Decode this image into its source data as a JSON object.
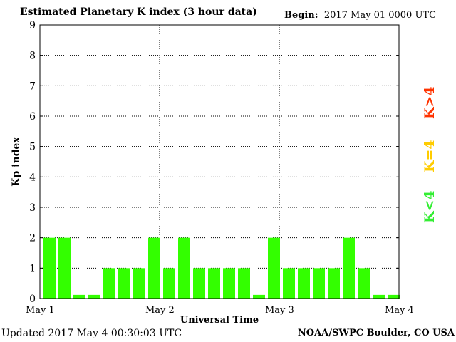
{
  "header": {
    "title": "Estimated Planetary K index (3 hour data)",
    "begin_label": "Begin:",
    "begin_value": "2017 May 01 0000 UTC"
  },
  "footer": {
    "updated": "Updated 2017 May  4 00:30:03 UTC",
    "credit": "NOAA/SWPC Boulder, CO USA"
  },
  "legend": {
    "low": {
      "label": "K<4",
      "color": "#33ee33"
    },
    "mid": {
      "label": "K=4",
      "color": "#ffcc00"
    },
    "high": {
      "label": "K>4",
      "color": "#ff3300"
    }
  },
  "chart_data": {
    "type": "bar",
    "title": "Estimated Planetary K index (3 hour data)",
    "xlabel": "Universal Time",
    "ylabel": "Kp index",
    "ylim": [
      0,
      9
    ],
    "yticks": [
      "0",
      "1",
      "2",
      "3",
      "4",
      "5",
      "6",
      "7",
      "8",
      "9"
    ],
    "xtick_labels": [
      "May 1",
      "May 2",
      "May 3",
      "May 4"
    ],
    "grid": true,
    "bar_color": "#33ff00",
    "values": [
      2,
      2,
      0,
      0,
      1,
      1,
      1,
      2,
      1,
      2,
      1,
      1,
      1,
      1,
      0,
      2,
      1,
      1,
      1,
      1,
      2,
      1,
      0,
      0
    ]
  }
}
